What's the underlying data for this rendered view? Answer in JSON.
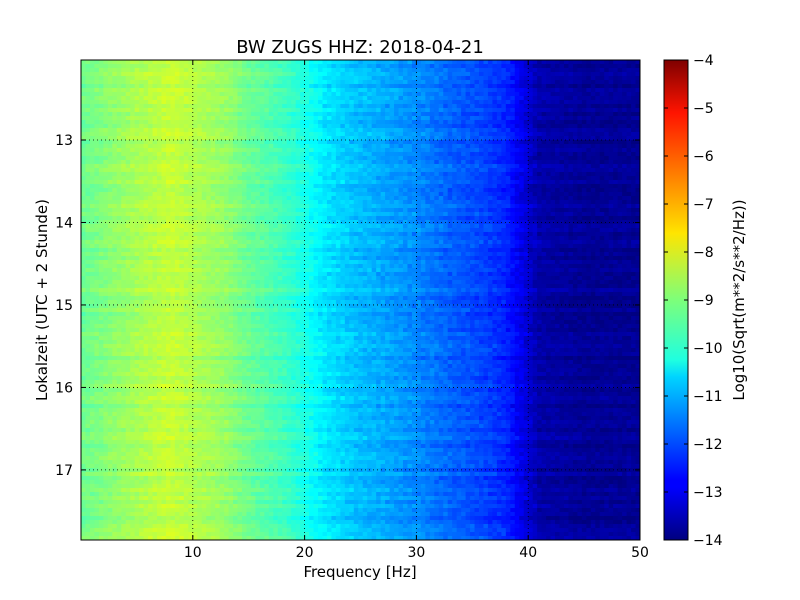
{
  "chart_data": {
    "type": "heatmap",
    "title": "BW ZUGS HHZ: 2018-04-21",
    "xlabel": "Frequency [Hz]",
    "ylabel": "Lokalzeit (UTC + 2 Stunde)",
    "colorbar_label": "Log10(Sqrt(m**2/s**2/Hz))",
    "xlim": [
      0,
      50
    ],
    "ylim": [
      17.85,
      12.03
    ],
    "x_ticks": [
      10,
      20,
      30,
      40,
      50
    ],
    "y_ticks": [
      13,
      14,
      15,
      16,
      17
    ],
    "colorbar_range": [
      -14,
      -4
    ],
    "colorbar_ticks": [
      -4,
      -5,
      -6,
      -7,
      -8,
      -9,
      -10,
      -11,
      -12,
      -13,
      -14
    ],
    "colormap": "jet",
    "grid": true,
    "spectrum_profile": {
      "frequency_hz": [
        0,
        5,
        8,
        10,
        13,
        15,
        18,
        20,
        22,
        25,
        28,
        30,
        33,
        36,
        38,
        39.5,
        41,
        45,
        50
      ],
      "log10_psd": [
        -9.2,
        -8.6,
        -8.3,
        -8.5,
        -8.8,
        -9.2,
        -9.6,
        -10.0,
        -10.5,
        -10.9,
        -11.2,
        -11.4,
        -11.8,
        -12.1,
        -12.4,
        -13.0,
        -13.6,
        -13.8,
        -13.8
      ]
    }
  }
}
